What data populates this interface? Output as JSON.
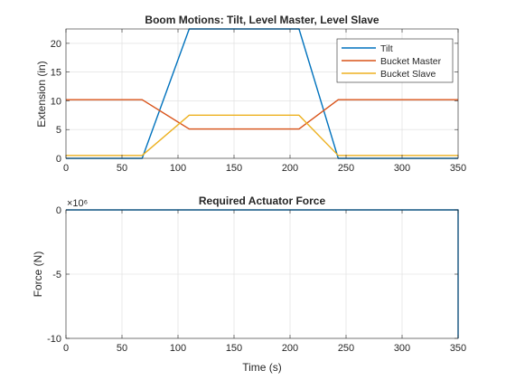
{
  "chart_data": [
    {
      "type": "line",
      "title": "Boom Motions: Tilt, Level Master, Level Slave",
      "xlabel": "",
      "ylabel": "Extension (in)",
      "xlim": [
        0,
        350
      ],
      "ylim": [
        0,
        22.5
      ],
      "xticks": [
        "0",
        "50",
        "100",
        "150",
        "200",
        "250",
        "300",
        "350"
      ],
      "yticks": [
        "0",
        "5",
        "10",
        "15",
        "20"
      ],
      "grid": true,
      "legend": "top-right",
      "series": [
        {
          "name": "Tilt",
          "color": "#0072BD",
          "x": [
            0,
            68,
            110,
            208,
            243,
            350
          ],
          "y": [
            0,
            0,
            22.5,
            22.5,
            0,
            0
          ]
        },
        {
          "name": "Bucket Master",
          "color": "#D95319",
          "x": [
            0,
            68,
            110,
            208,
            243,
            350
          ],
          "y": [
            10.2,
            10.2,
            5.1,
            5.1,
            10.2,
            10.2
          ]
        },
        {
          "name": "Bucket Slave",
          "color": "#EDB120",
          "x": [
            0,
            68,
            110,
            208,
            243,
            350
          ],
          "y": [
            0.5,
            0.5,
            7.5,
            7.5,
            0.5,
            0.5
          ]
        }
      ]
    },
    {
      "type": "line",
      "title": "Required Actuator Force",
      "xlabel": "Time (s)",
      "ylabel": "Force (N)",
      "multiplier": "×10⁶",
      "xlim": [
        0,
        350
      ],
      "ylim": [
        -10,
        0
      ],
      "xticks": [
        "0",
        "50",
        "100",
        "150",
        "200",
        "250",
        "300",
        "350"
      ],
      "yticks": [
        "-10",
        "-5",
        "0"
      ],
      "grid": true,
      "series": [
        {
          "color": "#0072BD",
          "x": [
            0,
            349.5,
            350,
            350
          ],
          "y": [
            0,
            0,
            0,
            -10
          ]
        }
      ]
    }
  ]
}
